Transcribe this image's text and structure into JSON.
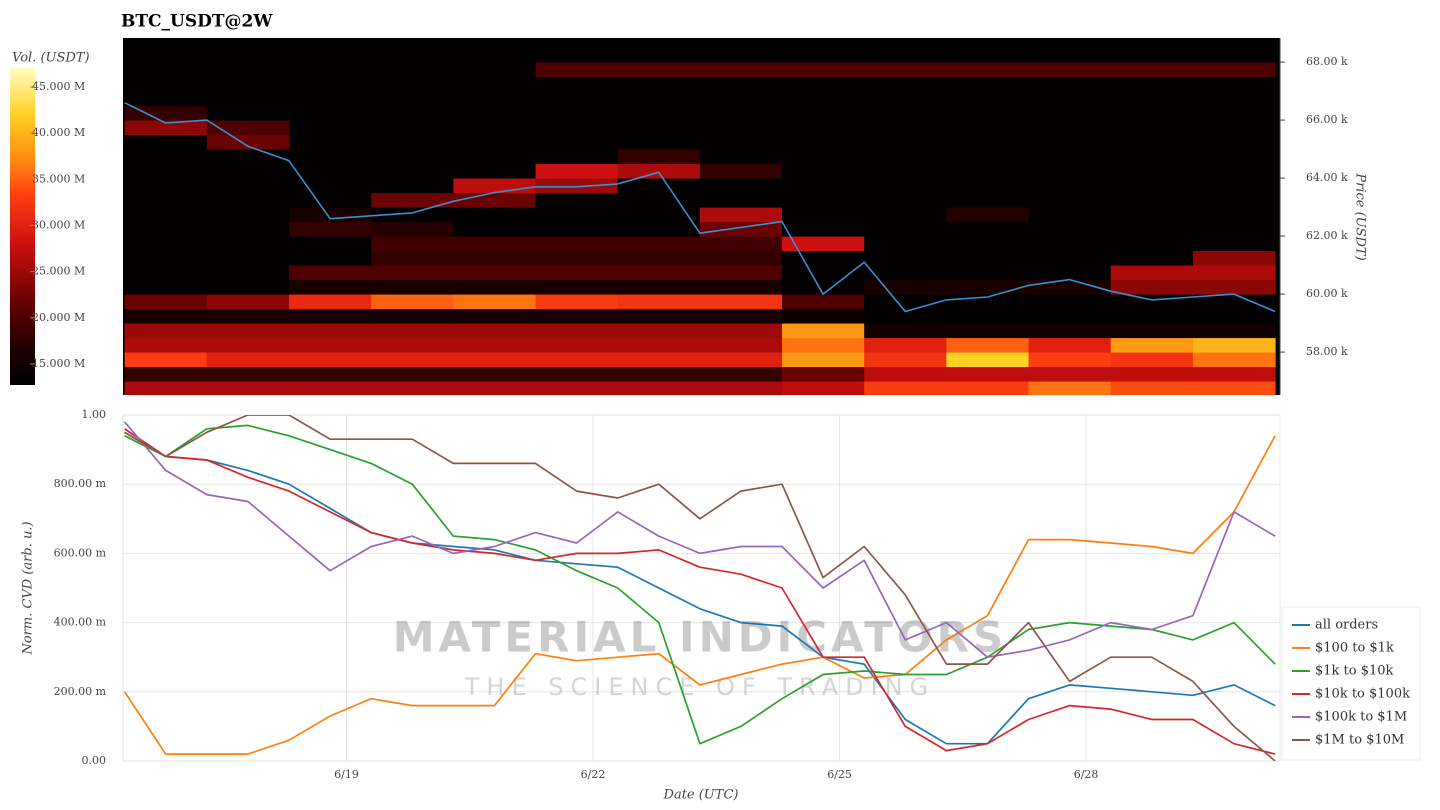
{
  "chart_data": [
    {
      "type": "heatmap",
      "title": "BTC_USDT@2W",
      "ylabel": "Price (USDT)",
      "xlim": [
        16.28,
        30.36
      ],
      "ylim": [
        56520,
        68830
      ],
      "yticks": [
        {
          "value": 58000,
          "label": "58.00 k"
        },
        {
          "value": 60000,
          "label": "60.00 k"
        },
        {
          "value": 62000,
          "label": "62.00 k"
        },
        {
          "value": 64000,
          "label": "64.00 k"
        },
        {
          "value": 66000,
          "label": "66.00 k"
        },
        {
          "value": 68000,
          "label": "68.00 k"
        }
      ],
      "colorbar": {
        "label": "Vol. (USDT)",
        "lim": [
          12720000,
          47060000
        ],
        "ticks": [
          {
            "value": 15000000,
            "label": "15.000 M"
          },
          {
            "value": 20000000,
            "label": "20.000 M"
          },
          {
            "value": 25000000,
            "label": "25.000 M"
          },
          {
            "value": 30000000,
            "label": "30.000 M"
          },
          {
            "value": 35000000,
            "label": "35.000 M"
          },
          {
            "value": 40000000,
            "label": "40.000 M"
          },
          {
            "value": 45000000,
            "label": "45.000 M"
          }
        ]
      },
      "x_edges": [
        16.3,
        17.3,
        18.3,
        19.3,
        20.3,
        21.3,
        22.3,
        23.3,
        24.3,
        25.3,
        26.3,
        27.3,
        28.3,
        29.3,
        30.3
      ],
      "y_edges": [
        56500,
        57000,
        57500,
        58000,
        58500,
        59000,
        59500,
        60000,
        60500,
        61000,
        61500,
        62000,
        62500,
        63000,
        63500,
        64000,
        64500,
        65000,
        65500,
        66000,
        66500,
        67000,
        67500,
        68000,
        68500
      ],
      "z": [
        [
          26000000,
          26000000,
          26000000,
          26000000,
          26000000,
          26000000,
          26000000,
          26000000,
          27000000,
          33000000,
          33000000,
          36000000,
          34000000,
          34000000
        ],
        [
          18000000,
          18000000,
          18000000,
          18000000,
          18000000,
          18000000,
          18000000,
          18000000,
          22000000,
          27000000,
          27000000,
          27000000,
          27000000,
          27000000
        ],
        [
          33000000,
          30000000,
          30000000,
          30000000,
          30000000,
          30000000,
          30000000,
          30000000,
          38000000,
          32000000,
          42000000,
          33000000,
          32000000,
          36000000
        ],
        [
          26000000,
          26000000,
          26000000,
          26000000,
          26000000,
          26000000,
          26000000,
          26000000,
          36000000,
          30000000,
          35000000,
          30000000,
          38000000,
          40000000
        ],
        [
          25000000,
          25000000,
          25000000,
          25000000,
          25000000,
          25000000,
          25000000,
          25000000,
          38000000,
          15000000,
          15000000,
          15000000,
          15000000,
          15000000
        ],
        [
          16000000,
          16000000,
          16000000,
          16000000,
          16000000,
          16000000,
          16000000,
          16000000,
          14000000,
          13000000,
          13000000,
          13000000,
          13000000,
          13000000
        ],
        [
          22000000,
          24000000,
          31000000,
          35000000,
          36000000,
          33000000,
          32000000,
          32000000,
          20000000,
          13000000,
          13000000,
          13000000,
          13000000,
          13000000
        ],
        [
          13000000,
          13000000,
          16000000,
          16000000,
          16000000,
          16000000,
          16000000,
          16000000,
          13000000,
          16000000,
          16000000,
          16000000,
          24000000,
          24000000
        ],
        [
          13000000,
          13000000,
          20000000,
          20000000,
          20000000,
          20000000,
          20000000,
          20000000,
          13000000,
          13000000,
          13000000,
          13000000,
          26000000,
          26000000
        ],
        [
          13000000,
          13000000,
          13000000,
          18000000,
          18000000,
          18000000,
          18000000,
          18000000,
          13000000,
          13000000,
          13000000,
          13000000,
          13000000,
          24000000
        ],
        [
          13000000,
          13000000,
          13000000,
          19000000,
          19000000,
          19000000,
          19000000,
          19000000,
          28000000,
          13000000,
          13000000,
          13000000,
          13000000,
          13000000
        ],
        [
          13000000,
          13000000,
          18000000,
          17000000,
          13000000,
          13000000,
          13000000,
          22000000,
          13000000,
          13000000,
          13000000,
          13000000,
          13000000,
          13000000
        ],
        [
          13000000,
          13000000,
          16000000,
          13000000,
          13000000,
          13000000,
          13000000,
          26000000,
          13000000,
          13000000,
          17000000,
          13000000,
          13000000,
          13000000
        ],
        [
          13000000,
          13000000,
          13000000,
          22000000,
          22000000,
          13000000,
          13000000,
          13000000,
          13000000,
          13000000,
          13000000,
          13000000,
          13000000,
          13000000
        ],
        [
          13000000,
          13000000,
          13000000,
          13000000,
          27000000,
          25000000,
          13000000,
          13000000,
          13000000,
          13000000,
          13000000,
          13000000,
          13000000,
          13000000
        ],
        [
          13000000,
          13000000,
          13000000,
          13000000,
          13000000,
          28000000,
          26000000,
          18000000,
          13000000,
          13000000,
          13000000,
          13000000,
          13000000,
          13000000
        ],
        [
          13000000,
          13000000,
          13000000,
          13000000,
          13000000,
          13000000,
          18000000,
          13000000,
          13000000,
          13000000,
          13000000,
          13000000,
          13000000,
          13000000
        ],
        [
          13000000,
          22000000,
          13000000,
          13000000,
          13000000,
          13000000,
          13000000,
          13000000,
          13000000,
          13000000,
          13000000,
          13000000,
          13000000,
          13000000
        ],
        [
          24000000,
          20000000,
          13000000,
          13000000,
          13000000,
          13000000,
          13000000,
          13000000,
          13000000,
          13000000,
          13000000,
          13000000,
          13000000,
          13000000
        ],
        [
          18000000,
          13000000,
          13000000,
          13000000,
          13000000,
          13000000,
          13000000,
          13000000,
          13000000,
          13000000,
          13000000,
          13000000,
          13000000,
          13000000
        ],
        [
          13000000,
          13000000,
          13000000,
          13000000,
          13000000,
          13000000,
          13000000,
          13000000,
          13000000,
          13000000,
          13000000,
          13000000,
          13000000,
          13000000
        ],
        [
          13000000,
          13000000,
          13000000,
          13000000,
          13000000,
          13000000,
          13000000,
          13000000,
          13000000,
          13000000,
          13000000,
          13000000,
          13000000,
          13000000
        ],
        [
          13000000,
          13000000,
          13000000,
          13000000,
          13000000,
          20000000,
          20000000,
          20000000,
          20000000,
          20000000,
          20000000,
          20000000,
          20000000,
          20000000
        ],
        [
          13000000,
          13000000,
          13000000,
          13000000,
          13000000,
          13000000,
          13000000,
          13000000,
          13000000,
          13000000,
          13000000,
          13000000,
          13000000,
          13000000
        ]
      ],
      "price": {
        "color": "#3a8fd0",
        "x": [
          16.3,
          16.8,
          17.3,
          17.8,
          18.3,
          18.8,
          19.3,
          19.8,
          20.3,
          20.8,
          21.3,
          21.8,
          22.3,
          22.8,
          23.3,
          23.8,
          24.3,
          24.8,
          25.3,
          25.8,
          26.3,
          26.8,
          27.3,
          27.8,
          28.3,
          28.8,
          29.3,
          29.8,
          30.3
        ],
        "values": [
          66600,
          65900,
          66000,
          65100,
          64600,
          62600,
          62700,
          62800,
          63200,
          63500,
          63700,
          63700,
          63800,
          64200,
          62100,
          62300,
          62500,
          60000,
          61100,
          59400,
          59800,
          59900,
          60300,
          60500,
          60100,
          59800,
          59900,
          60000,
          59400
        ]
      }
    },
    {
      "type": "line",
      "xlabel": "Date (UTC)",
      "ylabel": "Norm. CVD (arb. u.)",
      "watermark": [
        "MATERIAL INDICATORS",
        "THE SCIENCE OF TRADING"
      ],
      "xlim": [
        16.28,
        30.36
      ],
      "ylim": [
        0,
        1
      ],
      "grid": true,
      "legend": "lower right",
      "xticks": [
        {
          "value": 19,
          "label": "6/19"
        },
        {
          "value": 22,
          "label": "6/22"
        },
        {
          "value": 25,
          "label": "6/25"
        },
        {
          "value": 28,
          "label": "6/28"
        }
      ],
      "yticks": [
        {
          "value": 0,
          "label": "0.00"
        },
        {
          "value": 0.2,
          "label": "200.00 m"
        },
        {
          "value": 0.4,
          "label": "400.00 m"
        },
        {
          "value": 0.6,
          "label": "600.00 m"
        },
        {
          "value": 0.8,
          "label": "800.00 m"
        },
        {
          "value": 1,
          "label": "1.00"
        }
      ],
      "x": [
        16.3,
        16.8,
        17.3,
        17.8,
        18.3,
        18.8,
        19.3,
        19.8,
        20.3,
        20.8,
        21.3,
        21.8,
        22.3,
        22.8,
        23.3,
        23.8,
        24.3,
        24.8,
        25.3,
        25.8,
        26.3,
        26.8,
        27.3,
        27.8,
        28.3,
        28.8,
        29.3,
        29.8,
        30.3
      ],
      "series": [
        {
          "name": "all orders",
          "color": "#1f77b4",
          "values": [
            0.95,
            0.88,
            0.87,
            0.84,
            0.8,
            0.73,
            0.66,
            0.63,
            0.62,
            0.61,
            0.58,
            0.57,
            0.56,
            0.5,
            0.44,
            0.4,
            0.39,
            0.3,
            0.28,
            0.12,
            0.05,
            0.05,
            0.18,
            0.22,
            0.21,
            0.2,
            0.19,
            0.22,
            0.16
          ]
        },
        {
          "name": "$100 to $1k",
          "color": "#ff7f0e",
          "values": [
            0.2,
            0.02,
            0.02,
            0.02,
            0.06,
            0.13,
            0.18,
            0.16,
            0.16,
            0.16,
            0.31,
            0.29,
            0.3,
            0.31,
            0.22,
            0.25,
            0.28,
            0.3,
            0.24,
            0.25,
            0.35,
            0.42,
            0.64,
            0.64,
            0.63,
            0.62,
            0.6,
            0.72,
            0.94
          ]
        },
        {
          "name": "$1k to $10k",
          "color": "#2ca02c",
          "values": [
            0.94,
            0.88,
            0.96,
            0.97,
            0.94,
            0.9,
            0.86,
            0.8,
            0.65,
            0.64,
            0.61,
            0.55,
            0.5,
            0.4,
            0.05,
            0.1,
            0.18,
            0.25,
            0.26,
            0.25,
            0.25,
            0.3,
            0.38,
            0.4,
            0.39,
            0.38,
            0.35,
            0.4,
            0.28
          ]
        },
        {
          "name": "$10k to $100k",
          "color": "#d62728",
          "values": [
            0.96,
            0.88,
            0.87,
            0.82,
            0.78,
            0.72,
            0.66,
            0.63,
            0.61,
            0.6,
            0.58,
            0.6,
            0.6,
            0.61,
            0.56,
            0.54,
            0.5,
            0.3,
            0.3,
            0.1,
            0.03,
            0.05,
            0.12,
            0.16,
            0.15,
            0.12,
            0.12,
            0.05,
            0.02
          ]
        },
        {
          "name": "$100k to $1M",
          "color": "#9467bd",
          "values": [
            0.98,
            0.84,
            0.77,
            0.75,
            0.65,
            0.55,
            0.62,
            0.65,
            0.6,
            0.62,
            0.66,
            0.63,
            0.72,
            0.65,
            0.6,
            0.62,
            0.62,
            0.5,
            0.58,
            0.35,
            0.4,
            0.3,
            0.32,
            0.35,
            0.4,
            0.38,
            0.42,
            0.72,
            0.65
          ]
        },
        {
          "name": "$1M to $10M",
          "color": "#8c564b",
          "values": [
            0.95,
            0.88,
            0.95,
            1.0,
            1.0,
            0.93,
            0.93,
            0.93,
            0.86,
            0.86,
            0.86,
            0.78,
            0.76,
            0.8,
            0.7,
            0.78,
            0.8,
            0.53,
            0.62,
            0.48,
            0.28,
            0.28,
            0.4,
            0.23,
            0.3,
            0.3,
            0.23,
            0.1,
            0.0
          ]
        }
      ]
    }
  ]
}
